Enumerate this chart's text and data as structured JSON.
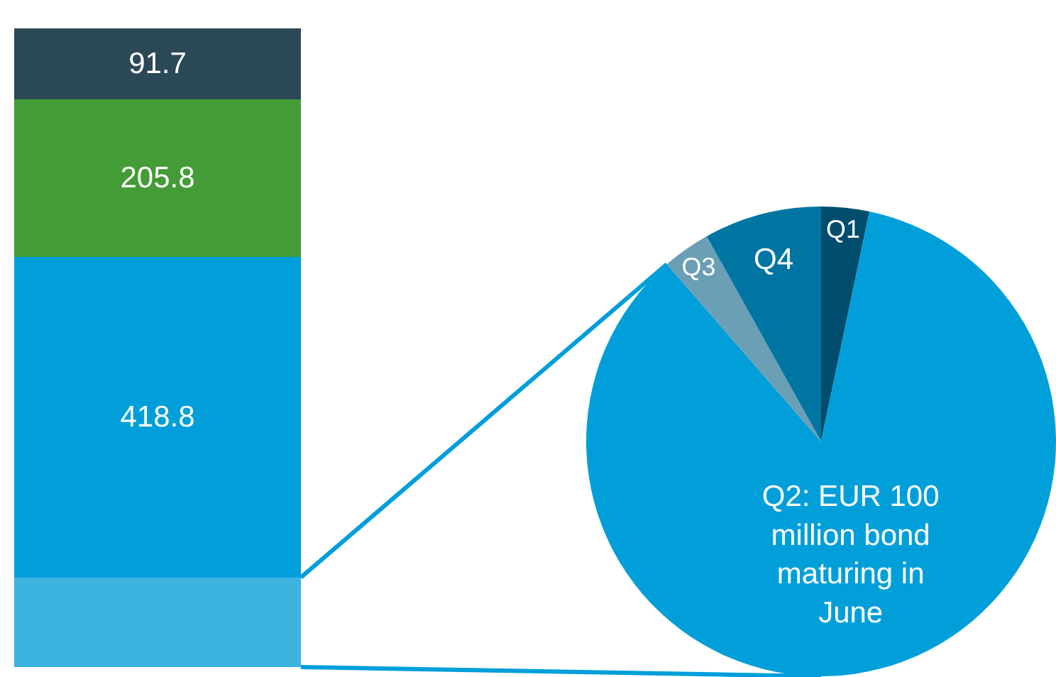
{
  "chart_data": [
    {
      "type": "bar",
      "stacked": true,
      "categories": [
        null
      ],
      "series": [
        {
          "color": "#3db4e0",
          "values": [
            117
          ],
          "value_labels": [
            null
          ]
        },
        {
          "color": "#009fda",
          "values": [
            418.8
          ],
          "value_labels": [
            "418.8"
          ]
        },
        {
          "color": "#439c35",
          "values": [
            205.8
          ],
          "value_labels": [
            "205.8"
          ]
        },
        {
          "color": "#2b4857",
          "values": [
            91.7
          ],
          "value_labels": [
            "91.7"
          ]
        }
      ]
    },
    {
      "type": "pie",
      "categories": [
        "Q1",
        "Q2: EUR 100 million bond maturing in June",
        "Q3",
        "Q4"
      ],
      "values": [
        3.3,
        85.3,
        3.3,
        8.1
      ],
      "colors": [
        "#004d6e",
        "#009fda",
        "#6a9fb5",
        "#0075a2"
      ]
    }
  ]
}
